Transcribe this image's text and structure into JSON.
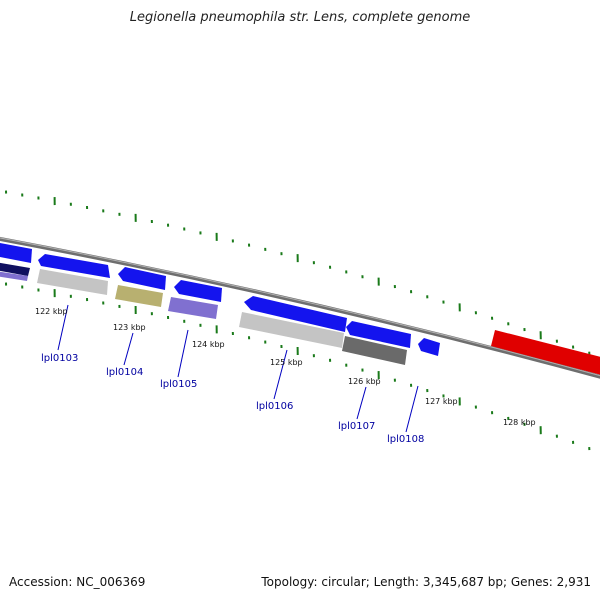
{
  "title": "Legionella pneumophila str. Lens, complete genome",
  "footer": {
    "accession": "Accession: NC_006369",
    "summary": "Topology: circular; Length: 3,345,687 bp; Genes: 2,931"
  },
  "kbp_labels": [
    "122 kbp",
    "123 kbp",
    "124 kbp",
    "125 kbp",
    "126 kbp",
    "127 kbp",
    "128 kbp"
  ],
  "gene_labels": [
    "lpl0103",
    "lpl0104",
    "lpl0105",
    "lpl0106",
    "lpl0107",
    "lpl0108"
  ],
  "colors": {
    "forward_gene": "#1010f0",
    "reverse_gene": "#e00000",
    "backbone": "#808080",
    "ticks": "#1a7a1a",
    "label_leader": "#0000c0",
    "cog_grey_light": "#c8c8c8",
    "cog_khaki": "#b8b070",
    "cog_lavender": "#8070d0",
    "cog_grey_dark": "#707070",
    "cog_navy": "#101070"
  }
}
